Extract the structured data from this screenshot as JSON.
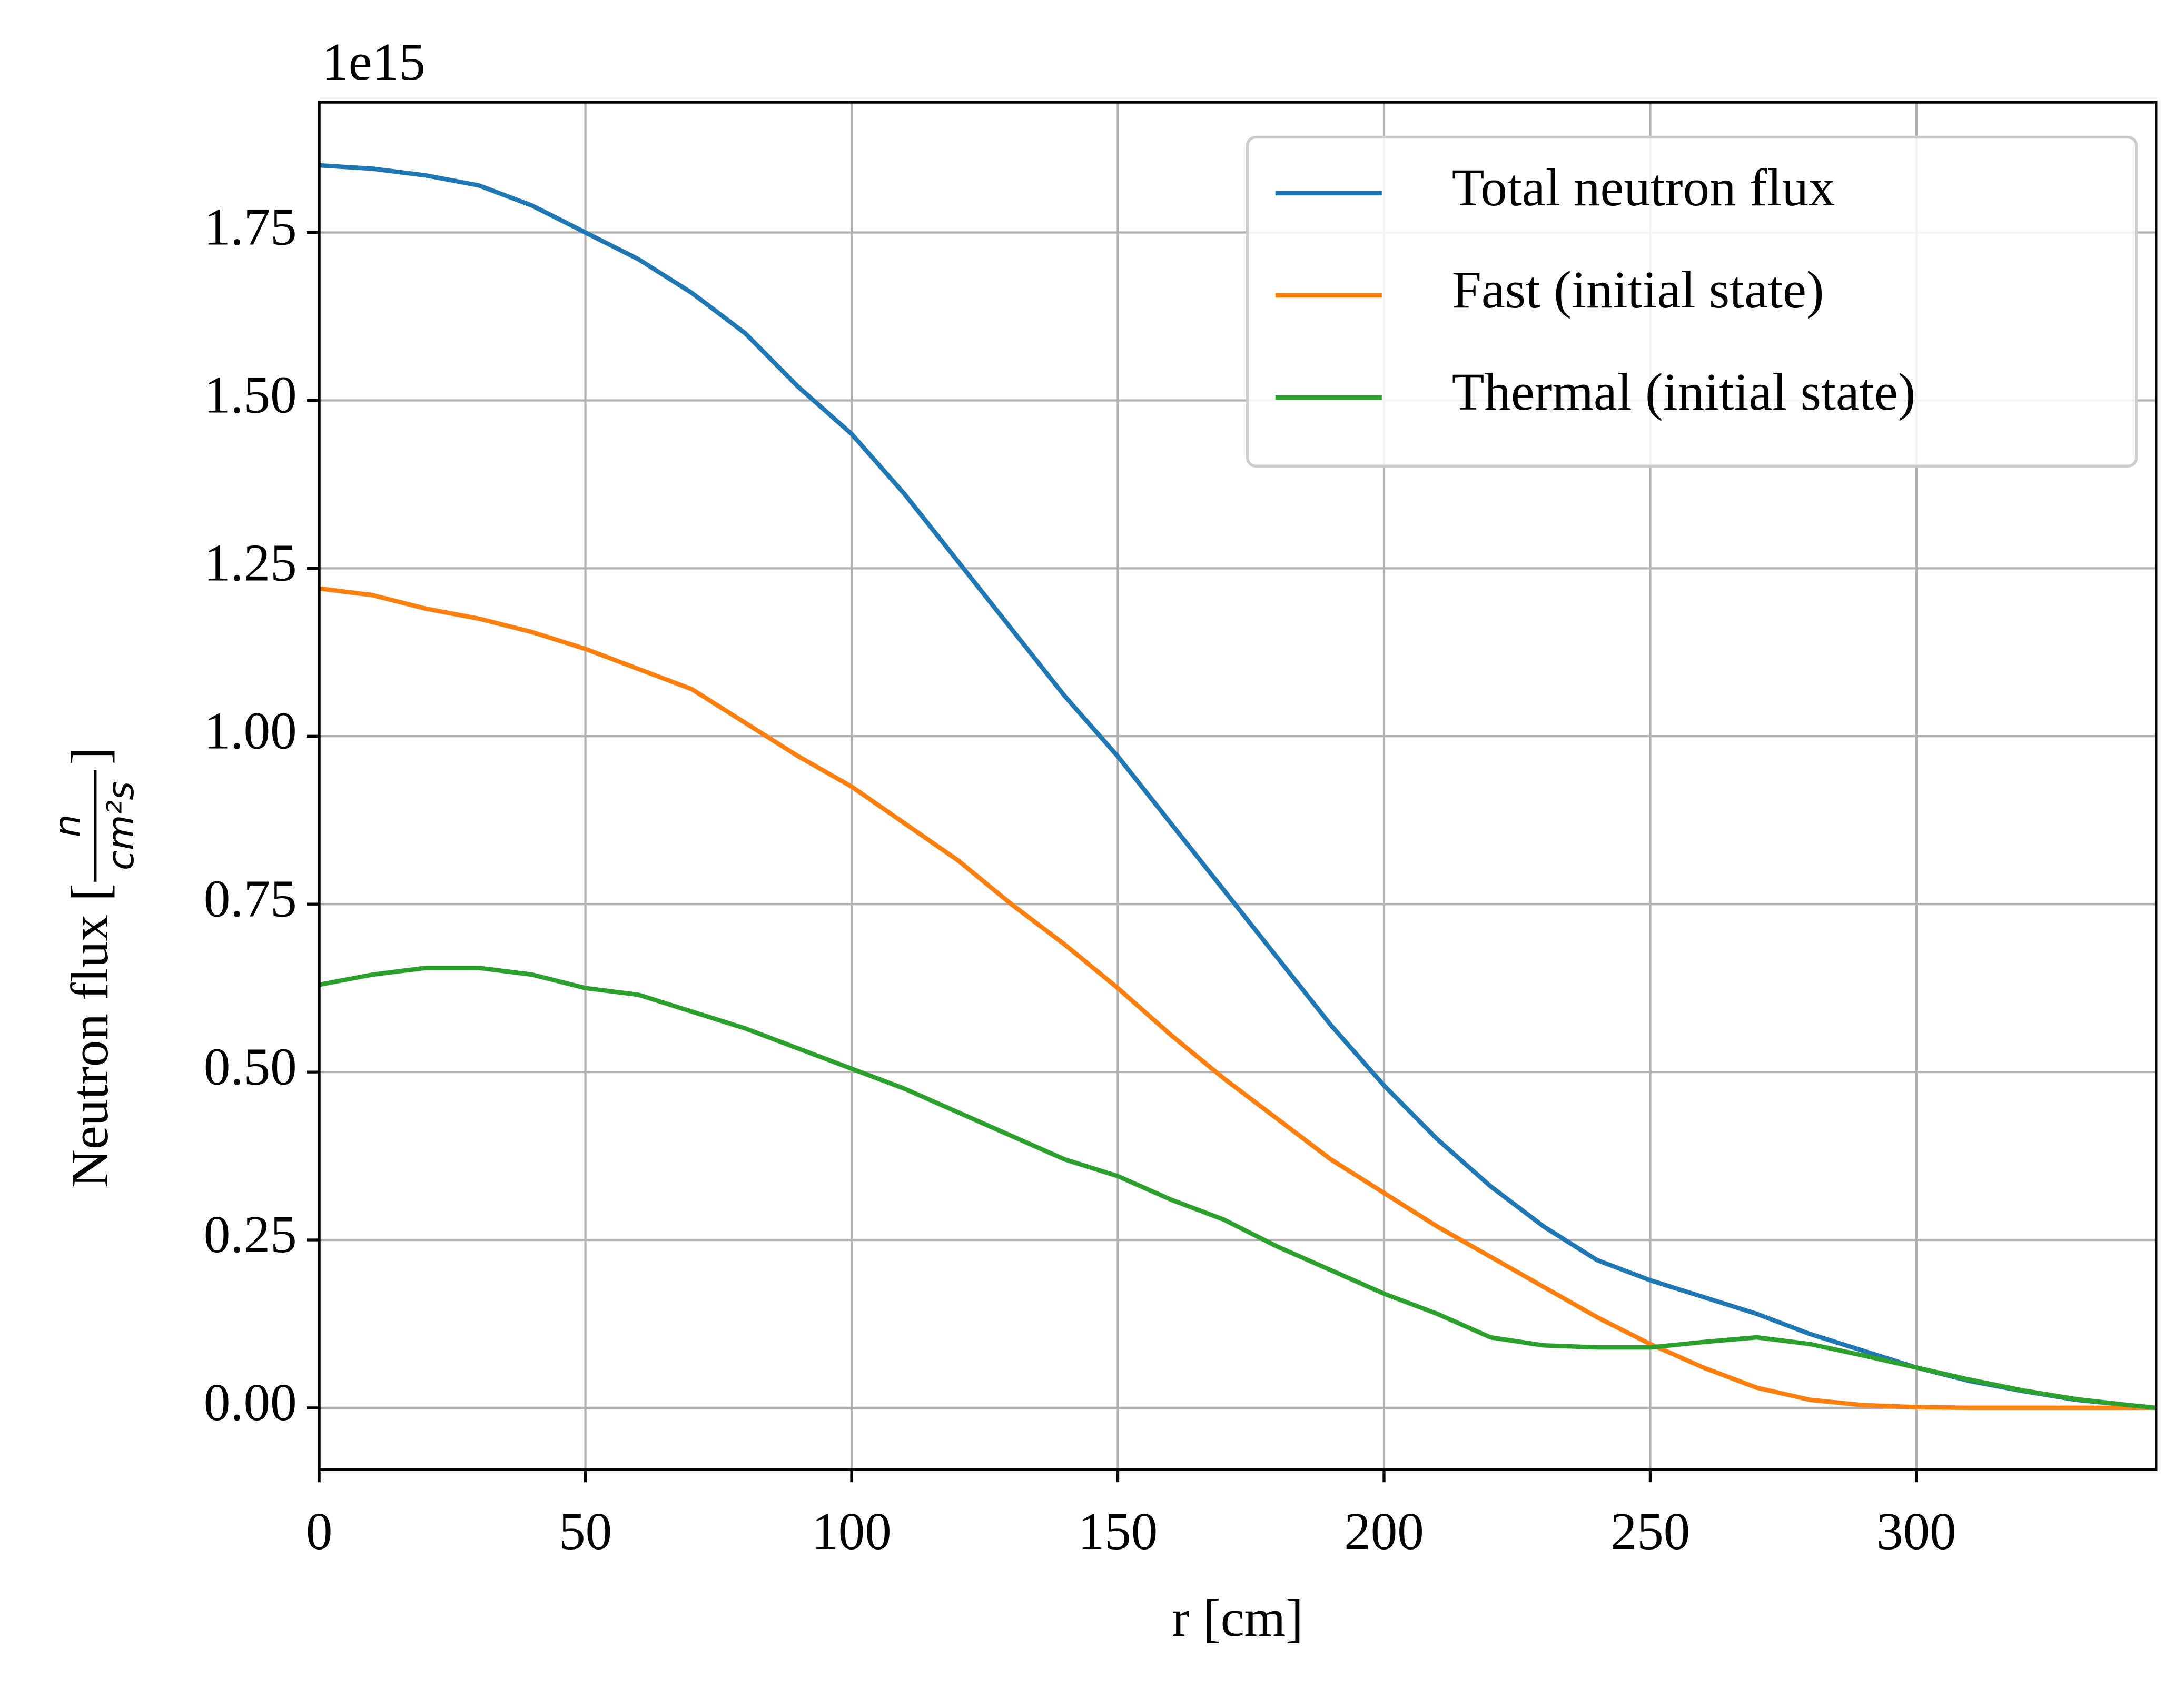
{
  "chart_data": {
    "type": "line",
    "offset_label": "1e15",
    "xlabel": "r [cm]",
    "ylabel": "Neutron flux [",
    "ylabel_unit": {
      "numerator": "n",
      "denominator": "cm²s",
      "close": "]"
    },
    "x": [
      0,
      10,
      20,
      30,
      40,
      50,
      60,
      70,
      80,
      90,
      100,
      110,
      120,
      130,
      140,
      150,
      160,
      170,
      180,
      190,
      200,
      210,
      220,
      230,
      240,
      250,
      260,
      270,
      280,
      290,
      300,
      310,
      320,
      330,
      340,
      345
    ],
    "series": [
      {
        "name": "Total neutron flux",
        "color": "#1f77b4",
        "values": [
          1.85,
          1.845,
          1.835,
          1.82,
          1.79,
          1.75,
          1.71,
          1.66,
          1.6,
          1.52,
          1.45,
          1.36,
          1.26,
          1.16,
          1.06,
          0.97,
          0.87,
          0.77,
          0.67,
          0.57,
          0.48,
          0.4,
          0.33,
          0.27,
          0.22,
          0.19,
          0.165,
          0.14,
          0.11,
          0.085,
          0.06,
          0.04,
          0.025,
          0.012,
          0.004,
          0
        ]
      },
      {
        "name": "Fast (initial state)",
        "color": "#ff7f0e",
        "values": [
          1.22,
          1.21,
          1.19,
          1.175,
          1.155,
          1.13,
          1.1,
          1.07,
          1.02,
          0.97,
          0.925,
          0.87,
          0.815,
          0.75,
          0.69,
          0.625,
          0.555,
          0.49,
          0.43,
          0.37,
          0.32,
          0.27,
          0.225,
          0.18,
          0.135,
          0.095,
          0.06,
          0.03,
          0.012,
          0.004,
          0.001,
          0,
          0,
          0,
          0,
          0
        ]
      },
      {
        "name": "Thermal (initial state)",
        "color": "#2ca02c",
        "values": [
          0.63,
          0.645,
          0.655,
          0.655,
          0.645,
          0.625,
          0.615,
          0.59,
          0.565,
          0.535,
          0.505,
          0.475,
          0.44,
          0.405,
          0.37,
          0.345,
          0.31,
          0.28,
          0.24,
          0.205,
          0.17,
          0.14,
          0.105,
          0.093,
          0.09,
          0.09,
          0.098,
          0.105,
          0.095,
          0.078,
          0.06,
          0.042,
          0.026,
          0.013,
          0.004,
          0
        ]
      }
    ],
    "xlim": [
      0,
      345
    ],
    "ylim": [
      -0.092,
      1.944
    ],
    "xticks": [
      0,
      50,
      100,
      150,
      200,
      250,
      300
    ],
    "yticks": [
      {
        "value": 0,
        "label": "0.00"
      },
      {
        "value": 0.25,
        "label": "0.25"
      },
      {
        "value": 0.5,
        "label": "0.50"
      },
      {
        "value": 0.75,
        "label": "0.75"
      },
      {
        "value": 1,
        "label": "1.00"
      },
      {
        "value": 1.25,
        "label": "1.25"
      },
      {
        "value": 1.5,
        "label": "1.50"
      },
      {
        "value": 1.75,
        "label": "1.75"
      }
    ],
    "grid": true,
    "legend": "upper right"
  }
}
